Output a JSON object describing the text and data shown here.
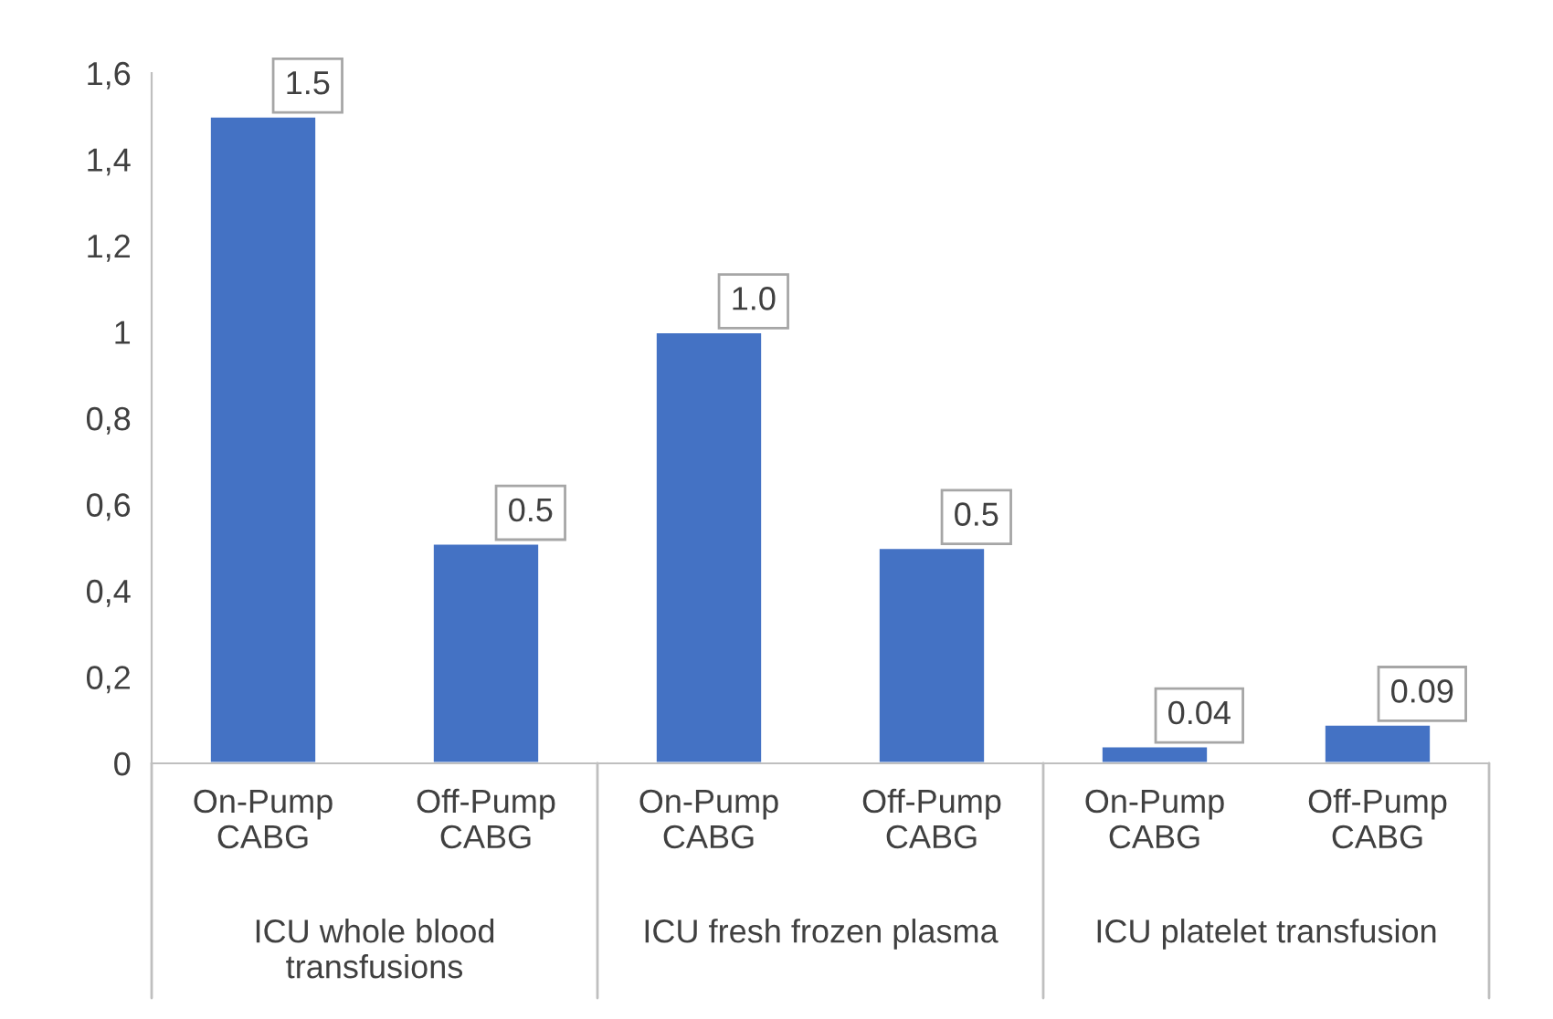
{
  "chart_data": {
    "type": "bar",
    "categories": [
      "On-Pump CABG",
      "Off-Pump CABG",
      "On-Pump CABG",
      "Off-Pump CABG",
      "On-Pump CABG",
      "Off-Pump CABG"
    ],
    "values": [
      1.5,
      0.51,
      1.0,
      0.5,
      0.04,
      0.09
    ],
    "value_labels": [
      "1.5",
      "0.5",
      "1.0",
      "0.5",
      "0.04",
      "0.09"
    ],
    "color": "#4472c4",
    "ylim": [
      0,
      1.6
    ],
    "yticks": [
      0,
      {
        "value": 0.2,
        "label": "0,2"
      },
      {
        "value": 0.4,
        "label": "0,4"
      },
      {
        "value": 0.6,
        "label": "0,6"
      },
      {
        "value": 0.8,
        "label": "0,8"
      },
      1,
      {
        "value": 1.2,
        "label": "1,2"
      },
      {
        "value": 1.4,
        "label": "1,4"
      },
      {
        "value": 1.6,
        "label": "1,6"
      }
    ],
    "annotations": [
      "ICU whole blood transfusions",
      "ICU fresh frozen plasma",
      "ICU platelet transfusion"
    ],
    "grid": false
  }
}
